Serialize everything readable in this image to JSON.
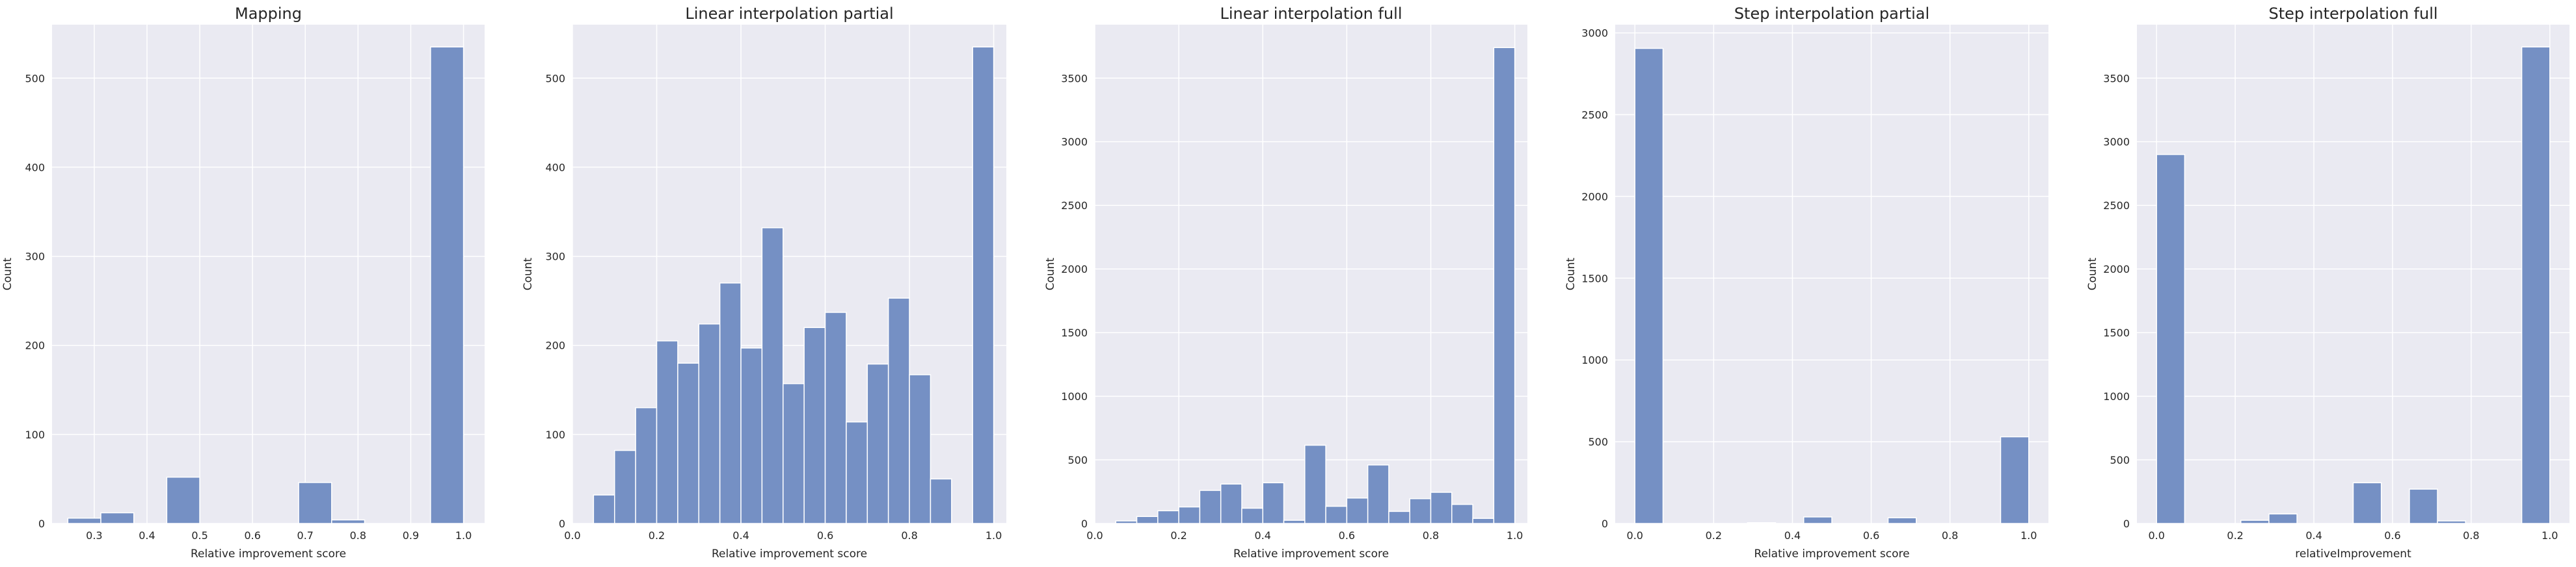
{
  "chart_data": [
    {
      "type": "bar",
      "title": "Mapping",
      "xlabel": "Relative improvement score",
      "ylabel": "Count",
      "xlim": [
        0.22,
        1.04
      ],
      "ylim": [
        0,
        560
      ],
      "xticks": [
        0.3,
        0.4,
        0.5,
        0.6,
        0.7,
        0.8,
        0.9,
        1.0
      ],
      "xtick_labels": [
        "0.3",
        "0.4",
        "0.5",
        "0.6",
        "0.7",
        "0.8",
        "0.9",
        "1.0"
      ],
      "yticks": [
        0,
        100,
        200,
        300,
        400,
        500
      ],
      "ytick_labels": [
        "0",
        "100",
        "200",
        "300",
        "400",
        "500"
      ],
      "bins": [
        {
          "x0": 0.25,
          "x1": 0.3125,
          "count": 6
        },
        {
          "x0": 0.3125,
          "x1": 0.375,
          "count": 12
        },
        {
          "x0": 0.4375,
          "x1": 0.5,
          "count": 52
        },
        {
          "x0": 0.5,
          "x1": 0.5625,
          "count": 0
        },
        {
          "x0": 0.6875,
          "x1": 0.75,
          "count": 46
        },
        {
          "x0": 0.75,
          "x1": 0.8125,
          "count": 4
        },
        {
          "x0": 0.9375,
          "x1": 1.0,
          "count": 535
        }
      ],
      "grid": true
    },
    {
      "type": "bar",
      "title": "Linear interpolation partial",
      "xlabel": "Relative improvement score",
      "ylabel": "Count",
      "xlim": [
        0.0,
        1.03
      ],
      "ylim": [
        0,
        560
      ],
      "xticks": [
        0.0,
        0.2,
        0.4,
        0.6,
        0.8,
        1.0
      ],
      "xtick_labels": [
        "0.0",
        "0.2",
        "0.4",
        "0.6",
        "0.8",
        "1.0"
      ],
      "yticks": [
        0,
        100,
        200,
        300,
        400,
        500
      ],
      "ytick_labels": [
        "0",
        "100",
        "200",
        "300",
        "400",
        "500"
      ],
      "bins": [
        {
          "x0": 0.05,
          "x1": 0.1,
          "count": 32
        },
        {
          "x0": 0.1,
          "x1": 0.15,
          "count": 82
        },
        {
          "x0": 0.15,
          "x1": 0.2,
          "count": 130
        },
        {
          "x0": 0.2,
          "x1": 0.25,
          "count": 205
        },
        {
          "x0": 0.25,
          "x1": 0.3,
          "count": 180
        },
        {
          "x0": 0.3,
          "x1": 0.35,
          "count": 224
        },
        {
          "x0": 0.35,
          "x1": 0.4,
          "count": 270
        },
        {
          "x0": 0.4,
          "x1": 0.45,
          "count": 197
        },
        {
          "x0": 0.45,
          "x1": 0.5,
          "count": 332
        },
        {
          "x0": 0.5,
          "x1": 0.55,
          "count": 157
        },
        {
          "x0": 0.55,
          "x1": 0.6,
          "count": 220
        },
        {
          "x0": 0.6,
          "x1": 0.65,
          "count": 237
        },
        {
          "x0": 0.65,
          "x1": 0.7,
          "count": 114
        },
        {
          "x0": 0.7,
          "x1": 0.75,
          "count": 179
        },
        {
          "x0": 0.75,
          "x1": 0.8,
          "count": 253
        },
        {
          "x0": 0.8,
          "x1": 0.85,
          "count": 167
        },
        {
          "x0": 0.85,
          "x1": 0.9,
          "count": 50
        },
        {
          "x0": 0.9,
          "x1": 0.95,
          "count": 0
        },
        {
          "x0": 0.95,
          "x1": 1.0,
          "count": 535
        }
      ],
      "grid": true
    },
    {
      "type": "bar",
      "title": "Linear interpolation full",
      "xlabel": "Relative improvement score",
      "ylabel": "Count",
      "xlim": [
        0.0,
        1.03
      ],
      "ylim": [
        0,
        3920
      ],
      "xticks": [
        0.0,
        0.2,
        0.4,
        0.6,
        0.8,
        1.0
      ],
      "xtick_labels": [
        "0.0",
        "0.2",
        "0.4",
        "0.6",
        "0.8",
        "1.0"
      ],
      "yticks": [
        0,
        500,
        1000,
        1500,
        2000,
        2500,
        3000,
        3500
      ],
      "ytick_labels": [
        "0",
        "500",
        "1000",
        "1500",
        "2000",
        "2500",
        "3000",
        "3500"
      ],
      "bins": [
        {
          "x0": 0.05,
          "x1": 0.1,
          "count": 20
        },
        {
          "x0": 0.1,
          "x1": 0.15,
          "count": 55
        },
        {
          "x0": 0.15,
          "x1": 0.2,
          "count": 100
        },
        {
          "x0": 0.2,
          "x1": 0.25,
          "count": 130
        },
        {
          "x0": 0.25,
          "x1": 0.3,
          "count": 260
        },
        {
          "x0": 0.3,
          "x1": 0.35,
          "count": 310
        },
        {
          "x0": 0.35,
          "x1": 0.4,
          "count": 120
        },
        {
          "x0": 0.4,
          "x1": 0.45,
          "count": 320
        },
        {
          "x0": 0.45,
          "x1": 0.5,
          "count": 25
        },
        {
          "x0": 0.5,
          "x1": 0.55,
          "count": 615
        },
        {
          "x0": 0.55,
          "x1": 0.6,
          "count": 135
        },
        {
          "x0": 0.6,
          "x1": 0.65,
          "count": 200
        },
        {
          "x0": 0.65,
          "x1": 0.7,
          "count": 460
        },
        {
          "x0": 0.7,
          "x1": 0.75,
          "count": 95
        },
        {
          "x0": 0.75,
          "x1": 0.8,
          "count": 195
        },
        {
          "x0": 0.8,
          "x1": 0.85,
          "count": 245
        },
        {
          "x0": 0.85,
          "x1": 0.9,
          "count": 150
        },
        {
          "x0": 0.9,
          "x1": 0.95,
          "count": 40
        },
        {
          "x0": 0.95,
          "x1": 1.0,
          "count": 3740
        }
      ],
      "grid": true
    },
    {
      "type": "bar",
      "title": "Step interpolation partial",
      "xlabel": "Relative improvement score",
      "ylabel": "Count",
      "xlim": [
        -0.05,
        1.05
      ],
      "ylim": [
        0,
        3050
      ],
      "xticks": [
        0.0,
        0.2,
        0.4,
        0.6,
        0.8,
        1.0
      ],
      "xtick_labels": [
        "0.0",
        "0.2",
        "0.4",
        "0.6",
        "0.8",
        "1.0"
      ],
      "yticks": [
        0,
        500,
        1000,
        1500,
        2000,
        2500,
        3000
      ],
      "ytick_labels": [
        "0",
        "500",
        "1000",
        "1500",
        "2000",
        "2500",
        "3000"
      ],
      "bins": [
        {
          "x0": 0.0,
          "x1": 0.0714,
          "count": 2905
        },
        {
          "x0": 0.2857,
          "x1": 0.3571,
          "count": 5
        },
        {
          "x0": 0.4286,
          "x1": 0.5,
          "count": 40
        },
        {
          "x0": 0.6429,
          "x1": 0.7143,
          "count": 35
        },
        {
          "x0": 0.9286,
          "x1": 1.0,
          "count": 530
        }
      ],
      "grid": true
    },
    {
      "type": "bar",
      "title": "Step interpolation full",
      "xlabel": "relativeImprovement",
      "ylabel": "Count",
      "xlim": [
        -0.05,
        1.05
      ],
      "ylim": [
        0,
        3920
      ],
      "xticks": [
        0.0,
        0.2,
        0.4,
        0.6,
        0.8,
        1.0
      ],
      "xtick_labels": [
        "0.0",
        "0.2",
        "0.4",
        "0.6",
        "0.8",
        "1.0"
      ],
      "yticks": [
        0,
        500,
        1000,
        1500,
        2000,
        2500,
        3000,
        3500
      ],
      "ytick_labels": [
        "0",
        "500",
        "1000",
        "1500",
        "2000",
        "2500",
        "3000",
        "3500"
      ],
      "bins": [
        {
          "x0": 0.0,
          "x1": 0.0714,
          "count": 2900
        },
        {
          "x0": 0.2143,
          "x1": 0.2857,
          "count": 25
        },
        {
          "x0": 0.2857,
          "x1": 0.3571,
          "count": 75
        },
        {
          "x0": 0.5,
          "x1": 0.5714,
          "count": 320
        },
        {
          "x0": 0.6429,
          "x1": 0.7143,
          "count": 270
        },
        {
          "x0": 0.7143,
          "x1": 0.7857,
          "count": 20
        },
        {
          "x0": 0.9286,
          "x1": 1.0,
          "count": 3745
        }
      ],
      "grid": true
    }
  ],
  "style": {
    "plot_background": "#eaeaf2",
    "grid_color": "#ffffff",
    "bar_fill": "#7590c4",
    "bar_stroke": "#ffffff",
    "text_color": "#262626"
  }
}
